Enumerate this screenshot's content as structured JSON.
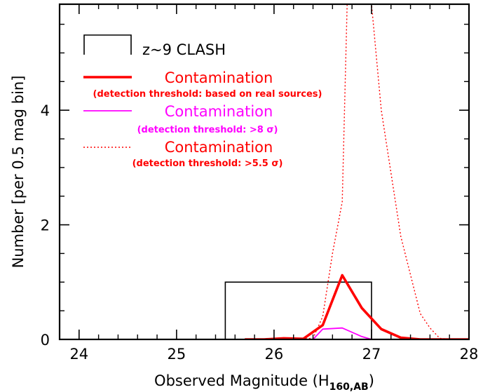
{
  "chart_data": {
    "type": "line",
    "xlabel": "Observed Magnitude (H",
    "xlabel_subscript": "160,AB",
    "xlabel_suffix": ")",
    "ylabel": "Number [per 0.5 mag bin]",
    "xlim": [
      23.8,
      28
    ],
    "ylim": [
      0,
      5.85
    ],
    "x_ticks": [
      24,
      25,
      26,
      27,
      28
    ],
    "y_ticks": [
      0,
      2,
      4
    ],
    "histogram": {
      "name": "z~9 CLASH",
      "color": "#000000",
      "bin_edges": [
        25.5,
        27.0
      ],
      "values": [
        1
      ]
    },
    "series": [
      {
        "name": "Contamination",
        "note": "(detection threshold: based on real sources)",
        "color": "#ff0000",
        "style": "solid-thick",
        "x": [
          25.7,
          25.9,
          26.1,
          26.3,
          26.5,
          26.7,
          26.9,
          27.1,
          27.3,
          27.5,
          27.7,
          27.9,
          28.0
        ],
        "y": [
          0,
          0,
          0.02,
          0.01,
          0.25,
          1.12,
          0.55,
          0.18,
          0.03,
          0,
          0,
          0,
          0
        ]
      },
      {
        "name": "Contamination",
        "note": "(detection threshold: >8 σ)",
        "color": "#ff00ff",
        "style": "solid-thin",
        "x": [
          26.0,
          26.2,
          26.4,
          26.5,
          26.7,
          26.9,
          27.0
        ],
        "y": [
          0,
          0,
          0,
          0.18,
          0.2,
          0.05,
          0
        ]
      },
      {
        "name": "Contamination",
        "note": "(detection threshold: >5.5 σ)",
        "color": "#ff0000",
        "style": "dotted",
        "x": [
          26.0,
          26.2,
          26.4,
          26.5,
          26.6,
          26.7,
          26.75,
          26.9,
          27.0,
          27.1,
          27.3,
          27.5,
          27.6,
          27.7,
          27.8
        ],
        "y": [
          0,
          0,
          0.02,
          0.4,
          1.5,
          2.4,
          5.85,
          5.85,
          5.85,
          4.0,
          1.8,
          0.45,
          0.2,
          0.02,
          0
        ]
      }
    ],
    "legend_position": "top-left"
  }
}
